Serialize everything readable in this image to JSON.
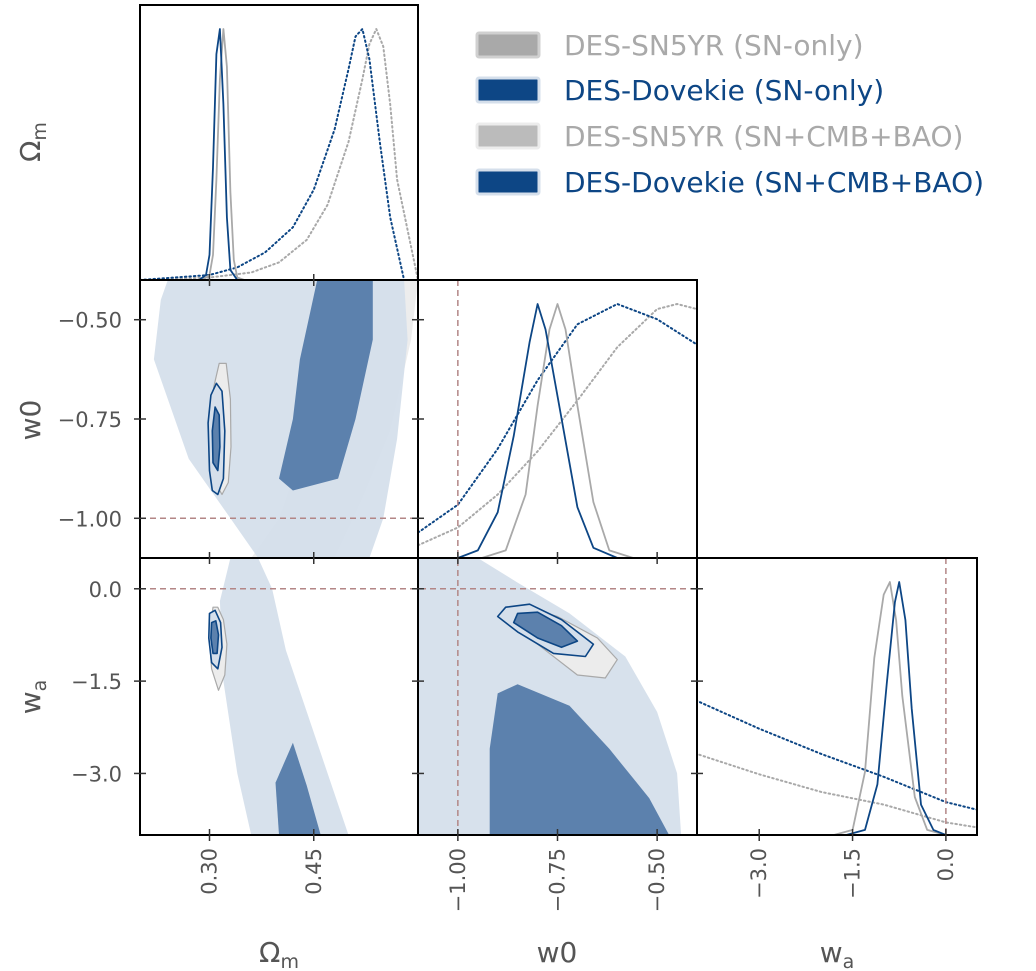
{
  "colors": {
    "sn5yr": "#a9a9a9",
    "dovekie": "#0d4685",
    "dovekie_fill_inner": "#5c81ad",
    "dovekie_fill_outer": "#d5dfeb",
    "sn5yr_fill_inner": "#bbbbbb",
    "sn5yr_fill_outer": "#ececec",
    "reference": "#b38686",
    "axis_text": "#555555"
  },
  "legend": {
    "placement": "top-right",
    "entries": [
      {
        "label": "DES-SN5YR (SN-only)",
        "color": "#a9a9a9",
        "fill": "solid"
      },
      {
        "label": "DES-Dovekie (SN-only)",
        "color": "#0d4685",
        "fill": "solid"
      },
      {
        "label": "DES-SN5YR (SN+CMB+BAO)",
        "color": "#a9a9a9",
        "fill": "light"
      },
      {
        "label": "DES-Dovekie (SN+CMB+BAO)",
        "color": "#0d4685",
        "fill": "light"
      }
    ]
  },
  "axes_labels": {
    "omega_m": {
      "base": "Ω",
      "sub": "m"
    },
    "w0": {
      "base": "w0",
      "sub": ""
    },
    "wa": {
      "base": "w",
      "sub": "a"
    }
  },
  "chart_data": {
    "type": "corner",
    "parameters": [
      "Omega_m",
      "w0",
      "wa"
    ],
    "ranges": {
      "omega_m": [
        0.2,
        0.6
      ],
      "w0": [
        -1.1,
        -0.4
      ],
      "wa": [
        -4.0,
        0.5
      ]
    },
    "ticks": {
      "omega_m": {
        "values": [
          0.3,
          0.45
        ],
        "labels": [
          "0.30",
          "0.45"
        ]
      },
      "w0": {
        "values": [
          -1.0,
          -0.75,
          -0.5
        ],
        "labels": [
          "−1.00",
          "−0.75",
          "−0.50"
        ]
      },
      "wa": {
        "values": [
          -3.0,
          -1.5,
          0.0
        ],
        "labels": [
          "−3.0",
          "−1.5",
          "0.0"
        ]
      }
    },
    "reference_lines": {
      "w0": -1.0,
      "wa": 0.0
    },
    "marginals": {
      "omega_m": [
        {
          "series": "DES-SN5YR (SN-only)",
          "style": "dotted",
          "x": [
            0.2,
            0.3,
            0.36,
            0.4,
            0.44,
            0.47,
            0.5,
            0.52,
            0.53,
            0.54,
            0.55,
            0.56,
            0.57,
            0.6
          ],
          "y": [
            0.0,
            0.01,
            0.03,
            0.07,
            0.16,
            0.3,
            0.55,
            0.8,
            0.94,
            1.0,
            0.93,
            0.7,
            0.4,
            0.0
          ]
        },
        {
          "series": "DES-Dovekie (SN-only)",
          "style": "dotted",
          "x": [
            0.2,
            0.25,
            0.3,
            0.34,
            0.38,
            0.42,
            0.45,
            0.48,
            0.5,
            0.51,
            0.52,
            0.53,
            0.545,
            0.56,
            0.58
          ],
          "y": [
            0.0,
            0.01,
            0.02,
            0.05,
            0.11,
            0.21,
            0.36,
            0.6,
            0.84,
            0.97,
            1.0,
            0.88,
            0.55,
            0.25,
            0.0
          ]
        },
        {
          "series": "DES-SN5YR (SN+CMB+BAO)",
          "style": "solid",
          "x": [
            0.29,
            0.3,
            0.305,
            0.31,
            0.315,
            0.32,
            0.325,
            0.33,
            0.335,
            0.34,
            0.35
          ],
          "y": [
            0.0,
            0.02,
            0.1,
            0.4,
            0.8,
            1.0,
            0.85,
            0.35,
            0.08,
            0.01,
            0.0
          ]
        },
        {
          "series": "DES-Dovekie (SN+CMB+BAO)",
          "style": "solid",
          "x": [
            0.285,
            0.295,
            0.3,
            0.305,
            0.31,
            0.315,
            0.32,
            0.325,
            0.33,
            0.34
          ],
          "y": [
            0.0,
            0.02,
            0.1,
            0.45,
            0.9,
            1.0,
            0.7,
            0.25,
            0.04,
            0.0
          ]
        }
      ],
      "w0": [
        {
          "series": "DES-SN5YR (SN-only)",
          "style": "dotted",
          "x": [
            -1.1,
            -1.0,
            -0.9,
            -0.8,
            -0.7,
            -0.6,
            -0.5,
            -0.45,
            -0.4
          ],
          "y": [
            0.05,
            0.12,
            0.25,
            0.42,
            0.62,
            0.83,
            0.98,
            1.0,
            0.98
          ]
        },
        {
          "series": "DES-Dovekie (SN-only)",
          "style": "dotted",
          "x": [
            -1.1,
            -1.0,
            -0.9,
            -0.8,
            -0.7,
            -0.6,
            -0.5,
            -0.4
          ],
          "y": [
            0.1,
            0.21,
            0.43,
            0.7,
            0.92,
            1.0,
            0.94,
            0.84
          ]
        },
        {
          "series": "DES-SN5YR (SN+CMB+BAO)",
          "style": "solid",
          "x": [
            -0.94,
            -0.88,
            -0.83,
            -0.8,
            -0.77,
            -0.75,
            -0.73,
            -0.7,
            -0.66,
            -0.62,
            -0.56
          ],
          "y": [
            0.0,
            0.03,
            0.25,
            0.6,
            0.9,
            1.0,
            0.9,
            0.6,
            0.22,
            0.03,
            0.0
          ]
        },
        {
          "series": "DES-Dovekie (SN+CMB+BAO)",
          "style": "solid",
          "x": [
            -1.0,
            -0.95,
            -0.9,
            -0.86,
            -0.82,
            -0.8,
            -0.78,
            -0.74,
            -0.7,
            -0.66,
            -0.6
          ],
          "y": [
            0.0,
            0.03,
            0.18,
            0.48,
            0.85,
            1.0,
            0.9,
            0.55,
            0.2,
            0.04,
            0.0
          ]
        }
      ],
      "wa": [
        {
          "series": "DES-SN5YR (SN-only)",
          "style": "dotted",
          "x": [
            -6.0,
            -5.0,
            -4.0,
            -3.0,
            -2.0,
            -1.0,
            0.0,
            0.5
          ],
          "y": [
            0.5,
            0.4,
            0.32,
            0.24,
            0.17,
            0.12,
            0.05,
            0.03
          ]
        },
        {
          "series": "DES-Dovekie (SN-only)",
          "style": "dotted",
          "x": [
            -6.0,
            -5.0,
            -4.0,
            -3.0,
            -2.0,
            -1.0,
            0.0,
            0.5
          ],
          "y": [
            0.75,
            0.64,
            0.53,
            0.42,
            0.32,
            0.23,
            0.13,
            0.1
          ]
        },
        {
          "series": "DES-SN5YR (SN+CMB+BAO)",
          "style": "solid",
          "x": [
            -1.8,
            -1.5,
            -1.3,
            -1.15,
            -1.0,
            -0.9,
            -0.8,
            -0.7,
            -0.5,
            -0.3,
            0.0
          ],
          "y": [
            0.0,
            0.02,
            0.25,
            0.7,
            0.95,
            1.0,
            0.85,
            0.55,
            0.15,
            0.02,
            0.0
          ]
        },
        {
          "series": "DES-Dovekie (SN+CMB+BAO)",
          "style": "solid",
          "x": [
            -1.6,
            -1.3,
            -1.1,
            -0.95,
            -0.82,
            -0.75,
            -0.65,
            -0.55,
            -0.4,
            -0.2,
            0.0
          ],
          "y": [
            0.0,
            0.02,
            0.2,
            0.6,
            0.92,
            1.0,
            0.85,
            0.5,
            0.12,
            0.02,
            0.0
          ]
        }
      ]
    },
    "contours": {
      "w0_vs_omega_m": [
        {
          "series": "DES-SN5YR (SN-only)",
          "level": "95",
          "points": [
            [
              0.36,
              -1.1
            ],
            [
              0.4,
              -1.0
            ],
            [
              0.43,
              -0.85
            ],
            [
              0.445,
              -0.7
            ],
            [
              0.455,
              -0.55
            ],
            [
              0.46,
              -0.4
            ],
            [
              0.6,
              -0.4
            ],
            [
              0.59,
              -0.55
            ],
            [
              0.56,
              -0.78
            ],
            [
              0.52,
              -0.95
            ],
            [
              0.48,
              -1.1
            ]
          ]
        },
        {
          "series": "DES-Dovekie (SN-only)",
          "level": "95",
          "points": [
            [
              0.22,
              -0.6
            ],
            [
              0.23,
              -0.45
            ],
            [
              0.24,
              -0.4
            ],
            [
              0.58,
              -0.4
            ],
            [
              0.585,
              -0.55
            ],
            [
              0.57,
              -0.8
            ],
            [
              0.55,
              -1.0
            ],
            [
              0.53,
              -1.1
            ],
            [
              0.37,
              -1.1
            ],
            [
              0.33,
              -1.0
            ],
            [
              0.27,
              -0.85
            ]
          ]
        },
        {
          "series": "DES-Dovekie (SN-only)",
          "level": "68",
          "points": [
            [
              0.4,
              -0.9
            ],
            [
              0.42,
              -0.75
            ],
            [
              0.43,
              -0.6
            ],
            [
              0.445,
              -0.48
            ],
            [
              0.455,
              -0.4
            ],
            [
              0.535,
              -0.4
            ],
            [
              0.535,
              -0.55
            ],
            [
              0.51,
              -0.75
            ],
            [
              0.485,
              -0.9
            ],
            [
              0.42,
              -0.93
            ]
          ]
        },
        {
          "series": "DES-SN5YR (SN+CMB+BAO)",
          "level": "95",
          "points": [
            [
              0.305,
              -0.9
            ],
            [
              0.302,
              -0.78
            ],
            [
              0.306,
              -0.67
            ],
            [
              0.314,
              -0.61
            ],
            [
              0.324,
              -0.61
            ],
            [
              0.33,
              -0.7
            ],
            [
              0.331,
              -0.82
            ],
            [
              0.327,
              -0.91
            ],
            [
              0.318,
              -0.94
            ]
          ]
        },
        {
          "series": "DES-Dovekie (SN+CMB+BAO)",
          "level": "95",
          "points": [
            [
              0.3,
              -0.88
            ],
            [
              0.298,
              -0.76
            ],
            [
              0.302,
              -0.69
            ],
            [
              0.31,
              -0.66
            ],
            [
              0.318,
              -0.68
            ],
            [
              0.322,
              -0.78
            ],
            [
              0.32,
              -0.9
            ],
            [
              0.312,
              -0.94
            ],
            [
              0.304,
              -0.93
            ]
          ]
        },
        {
          "series": "DES-Dovekie (SN+CMB+BAO)",
          "level": "68",
          "points": [
            [
              0.305,
              -0.86
            ],
            [
              0.304,
              -0.78
            ],
            [
              0.308,
              -0.72
            ],
            [
              0.314,
              -0.74
            ],
            [
              0.315,
              -0.82
            ],
            [
              0.312,
              -0.88
            ]
          ]
        }
      ],
      "wa_vs_omega_m": [
        {
          "series": "DES-Dovekie (SN-only)",
          "level": "95",
          "points": [
            [
              0.33,
              0.5
            ],
            [
              0.37,
              0.5
            ],
            [
              0.39,
              0.0
            ],
            [
              0.41,
              -1.0
            ],
            [
              0.44,
              -2.0
            ],
            [
              0.47,
              -3.0
            ],
            [
              0.5,
              -4.0
            ],
            [
              0.36,
              -4.0
            ],
            [
              0.34,
              -3.0
            ],
            [
              0.32,
              -1.5
            ],
            [
              0.315,
              -0.2
            ]
          ]
        },
        {
          "series": "DES-Dovekie (SN-only)",
          "level": "68",
          "points": [
            [
              0.395,
              -3.15
            ],
            [
              0.42,
              -2.5
            ],
            [
              0.44,
              -3.2
            ],
            [
              0.46,
              -4.0
            ],
            [
              0.4,
              -4.0
            ]
          ]
        },
        {
          "series": "DES-SN5YR (SN+CMB+BAO)",
          "level": "95",
          "points": [
            [
              0.305,
              -0.3
            ],
            [
              0.312,
              -0.3
            ],
            [
              0.32,
              -0.5
            ],
            [
              0.325,
              -0.9
            ],
            [
              0.322,
              -1.4
            ],
            [
              0.313,
              -1.65
            ],
            [
              0.303,
              -1.3
            ],
            [
              0.3,
              -0.8
            ]
          ]
        },
        {
          "series": "DES-Dovekie (SN+CMB+BAO)",
          "level": "95",
          "points": [
            [
              0.3,
              -0.4
            ],
            [
              0.308,
              -0.35
            ],
            [
              0.316,
              -0.55
            ],
            [
              0.318,
              -0.95
            ],
            [
              0.312,
              -1.3
            ],
            [
              0.303,
              -1.2
            ],
            [
              0.299,
              -0.8
            ]
          ]
        },
        {
          "series": "DES-Dovekie (SN+CMB+BAO)",
          "level": "68",
          "points": [
            [
              0.303,
              -0.55
            ],
            [
              0.309,
              -0.52
            ],
            [
              0.313,
              -0.75
            ],
            [
              0.311,
              -1.05
            ],
            [
              0.305,
              -1.05
            ],
            [
              0.302,
              -0.8
            ]
          ]
        }
      ],
      "wa_vs_w0": [
        {
          "series": "DES-Dovekie (SN-only)",
          "level": "95",
          "points": [
            [
              -1.1,
              0.5
            ],
            [
              -0.95,
              0.5
            ],
            [
              -0.85,
              0.1
            ],
            [
              -0.72,
              -0.4
            ],
            [
              -0.58,
              -1.1
            ],
            [
              -0.5,
              -2.0
            ],
            [
              -0.45,
              -3.0
            ],
            [
              -0.44,
              -4.0
            ],
            [
              -1.1,
              -4.0
            ]
          ]
        },
        {
          "series": "DES-Dovekie (SN-only)",
          "level": "68",
          "points": [
            [
              -0.92,
              -3.8
            ],
            [
              -0.92,
              -2.6
            ],
            [
              -0.9,
              -1.7
            ],
            [
              -0.85,
              -1.55
            ],
            [
              -0.72,
              -1.9
            ],
            [
              -0.62,
              -2.6
            ],
            [
              -0.52,
              -3.4
            ],
            [
              -0.47,
              -4.0
            ],
            [
              -0.92,
              -4.0
            ]
          ]
        },
        {
          "series": "DES-SN5YR (SN+CMB+BAO)",
          "level": "95",
          "points": [
            [
              -0.83,
              -0.3
            ],
            [
              -0.75,
              -0.45
            ],
            [
              -0.65,
              -0.8
            ],
            [
              -0.6,
              -1.15
            ],
            [
              -0.63,
              -1.45
            ],
            [
              -0.7,
              -1.4
            ],
            [
              -0.8,
              -0.9
            ],
            [
              -0.87,
              -0.5
            ]
          ]
        },
        {
          "series": "DES-Dovekie (SN+CMB+BAO)",
          "level": "95",
          "points": [
            [
              -0.88,
              -0.3
            ],
            [
              -0.82,
              -0.25
            ],
            [
              -0.74,
              -0.5
            ],
            [
              -0.66,
              -0.9
            ],
            [
              -0.68,
              -1.1
            ],
            [
              -0.76,
              -1.05
            ],
            [
              -0.85,
              -0.7
            ],
            [
              -0.9,
              -0.45
            ]
          ]
        },
        {
          "series": "DES-Dovekie (SN+CMB+BAO)",
          "level": "68",
          "points": [
            [
              -0.85,
              -0.4
            ],
            [
              -0.8,
              -0.38
            ],
            [
              -0.74,
              -0.6
            ],
            [
              -0.7,
              -0.85
            ],
            [
              -0.74,
              -0.95
            ],
            [
              -0.8,
              -0.8
            ],
            [
              -0.86,
              -0.55
            ]
          ]
        }
      ]
    }
  }
}
